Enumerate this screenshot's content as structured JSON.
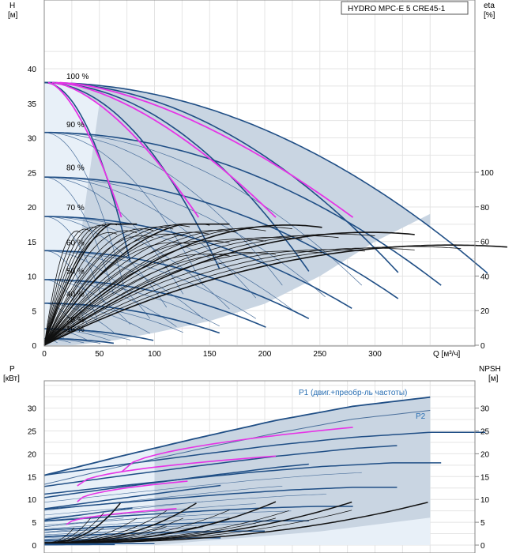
{
  "colors": {
    "region": "#c9d5e2",
    "region_light": "#e8f0f8",
    "grid": "#e4e4e4",
    "frame": "#888888",
    "dark_blue": "#1f4e85",
    "thin_blue": "#4a6f9b",
    "magenta": "#e633e6",
    "black": "#111111",
    "p2_label": "#2a6fb3",
    "text": "#000000"
  },
  "chart_data": [
    {
      "type": "line",
      "title": "HYDRO MPC-E 5 CRE45-1",
      "ylabel_line1": "H",
      "ylabel_line2": "[м]",
      "y2label_line1": "eta",
      "y2label_line2": "[%]",
      "xlabel": "Q [м³/ч]",
      "xlim": [
        0,
        355
      ],
      "ylim": [
        0,
        44
      ],
      "x_ticks": [
        "0",
        "50",
        "100",
        "150",
        "200",
        "250",
        "300",
        "Q [м³/ч]"
      ],
      "y_ticks": [
        "0",
        "5",
        "10",
        "15",
        "20",
        "25",
        "30",
        "35",
        "40"
      ],
      "y2_ticks": [
        "0",
        "20",
        "40",
        "60",
        "80",
        "100"
      ],
      "y2lim_percent": [
        0,
        100
      ],
      "grid": true,
      "speed_labels": [
        "100 %",
        "90 %",
        "80 %",
        "70 %",
        "60 %",
        "50 %",
        "40 %",
        "25 %",
        "16 %"
      ],
      "speed_label_H": [
        38.2,
        31.2,
        25.0,
        19.2,
        14.1,
        10.0,
        6.7,
        3.0,
        1.6
      ],
      "series": [
        {
          "kind": "pump-curve-set",
          "speed_fractions": [
            1.0,
            0.9,
            0.8,
            0.7,
            0.6,
            0.5,
            0.4,
            0.25,
            0.16
          ],
          "H0": 38,
          "Qmax_one_pump": 70,
          "pumps": 5
        },
        {
          "kind": "system-limit",
          "x": [
            0,
            70,
            140,
            210,
            280,
            350
          ],
          "y": [
            38,
            35.5,
            31,
            24.5,
            16.5,
            18.8
          ]
        },
        {
          "kind": "min-flow-magenta",
          "x_end": [
            70,
            140,
            210,
            280
          ],
          "y_end": [
            18.5,
            18.5,
            18.5,
            18.5
          ]
        },
        {
          "kind": "efficiency-peaks",
          "values_percent": [
            69,
            68,
            66,
            62,
            55
          ]
        }
      ]
    },
    {
      "type": "line",
      "ylabel_line1": "P",
      "ylabel_line2": "[кВт]",
      "y2label_line1": "NPSH",
      "y2label_line2": "[м]",
      "xlim": [
        0,
        355
      ],
      "ylim": [
        0,
        36
      ],
      "y_ticks": [
        "0",
        "5",
        "10",
        "15",
        "20",
        "25",
        "30"
      ],
      "y2_ticks": [
        "0",
        "5",
        "10",
        "15",
        "20",
        "25",
        "30"
      ],
      "grid": true,
      "annotations": [
        "P1 (двиг.+преобр-ль частоты)",
        "P2"
      ],
      "series": [
        {
          "kind": "P1-full",
          "x": [
            0,
            70,
            140,
            210,
            280,
            350
          ],
          "y": [
            15.3,
            19.5,
            23.5,
            27.3,
            30.4,
            32.4
          ]
        },
        {
          "kind": "P2-full",
          "x": [
            0,
            70,
            140,
            210,
            280,
            350
          ],
          "y": [
            13.3,
            17.3,
            21.0,
            24.5,
            27.6,
            29.5
          ]
        },
        {
          "kind": "npsh-black",
          "x_end": [
            70,
            140,
            210,
            280,
            350
          ],
          "y_end": [
            9.5,
            9.5,
            9.5,
            9.5,
            9.5
          ]
        }
      ]
    }
  ]
}
